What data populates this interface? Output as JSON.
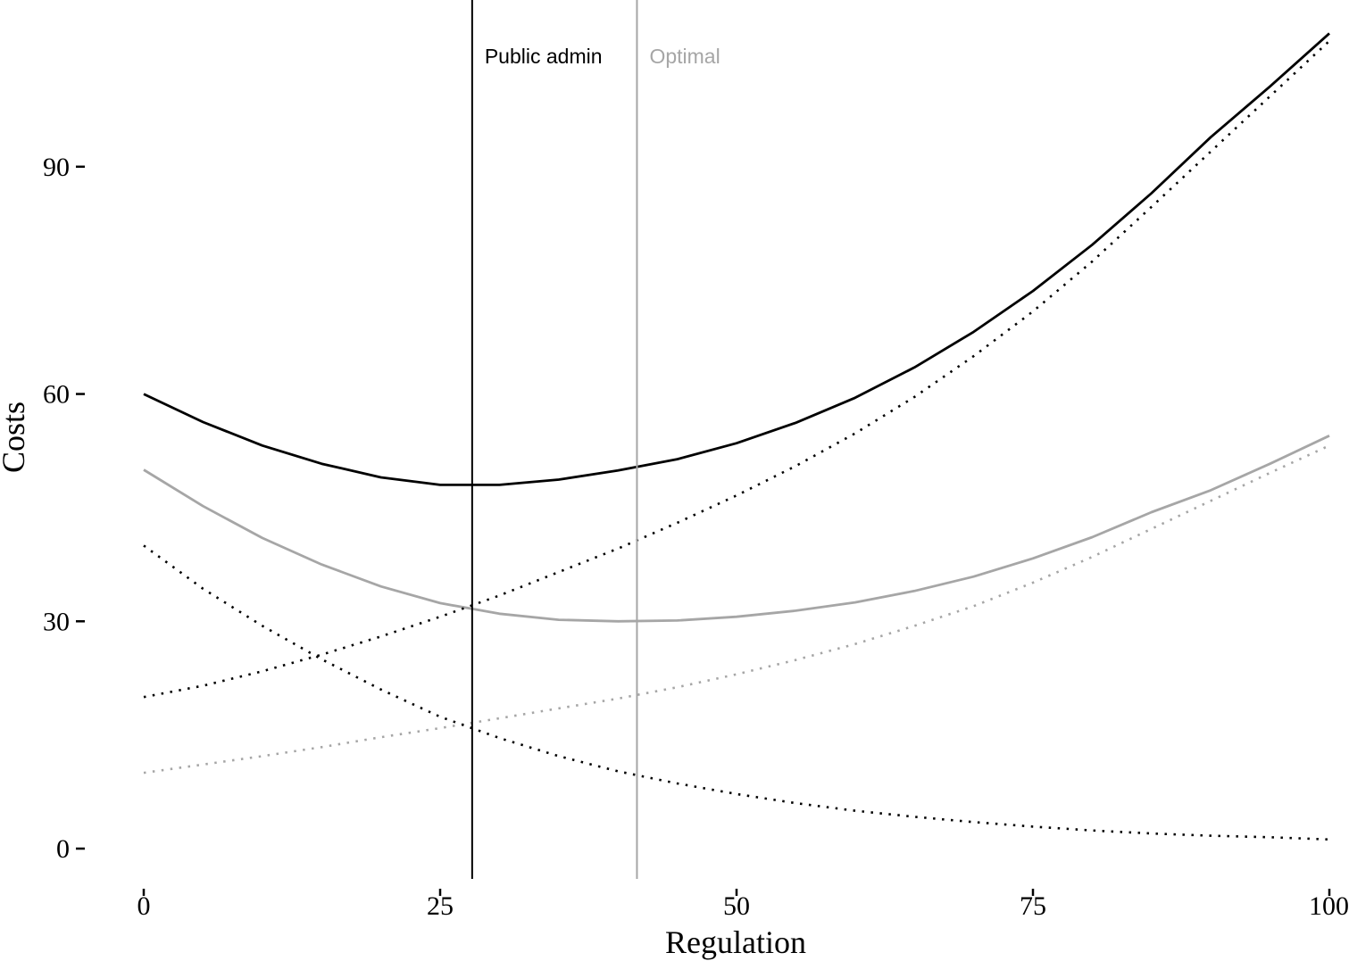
{
  "chart_data": {
    "type": "line",
    "title": "",
    "xlabel": "Regulation",
    "ylabel": "Costs",
    "xlim": [
      0,
      100
    ],
    "ylim": [
      -4,
      112
    ],
    "x_ticks": [
      0,
      25,
      50,
      75,
      100
    ],
    "y_ticks": [
      0,
      30,
      60,
      90
    ],
    "grid": false,
    "legend": "none",
    "colors": {
      "black": "#000000",
      "gray": "#a6a6a6"
    },
    "series": [
      {
        "color": "#000000",
        "style": "solid",
        "x": [
          0,
          5,
          10,
          15,
          20,
          25,
          30,
          35,
          40,
          45,
          50,
          55,
          60,
          65,
          70,
          75,
          80,
          85,
          90,
          95,
          100
        ],
        "y": [
          60.0,
          56.3,
          53.2,
          50.8,
          49.0,
          48.0,
          48.0,
          48.7,
          49.9,
          51.4,
          53.5,
          56.2,
          59.5,
          63.5,
          68.2,
          73.6,
          79.7,
          86.5,
          93.9,
          100.6,
          107.6
        ]
      },
      {
        "color": "#a6a6a6",
        "style": "solid",
        "x": [
          0,
          5,
          10,
          15,
          20,
          25,
          30,
          35,
          40,
          45,
          50,
          55,
          60,
          65,
          70,
          75,
          80,
          85,
          90,
          95,
          100
        ],
        "y": [
          50.0,
          45.2,
          41.0,
          37.5,
          34.6,
          32.4,
          31.0,
          30.2,
          30.0,
          30.1,
          30.6,
          31.4,
          32.5,
          34.0,
          35.9,
          38.3,
          41.1,
          44.4,
          47.3,
          50.8,
          54.5
        ]
      },
      {
        "color": "#000000",
        "style": "dotted",
        "x": [
          0,
          5,
          10,
          15,
          20,
          25,
          30,
          35,
          40,
          45,
          50,
          55,
          60,
          65,
          70,
          75,
          80,
          85,
          90,
          95,
          100
        ],
        "y": [
          20.0,
          21.5,
          23.4,
          25.6,
          28.0,
          30.6,
          33.4,
          36.5,
          39.6,
          43.0,
          46.6,
          50.5,
          54.8,
          59.6,
          65.0,
          70.9,
          77.5,
          84.7,
          92.0,
          99.3,
          106.6
        ]
      },
      {
        "color": "#a6a6a6",
        "style": "dotted",
        "x": [
          0,
          5,
          10,
          15,
          20,
          25,
          30,
          35,
          40,
          45,
          50,
          55,
          60,
          65,
          70,
          75,
          80,
          85,
          90,
          95,
          100
        ],
        "y": [
          10.0,
          11.1,
          12.2,
          13.4,
          14.7,
          15.9,
          17.2,
          18.5,
          19.8,
          21.3,
          23.0,
          24.9,
          27.0,
          29.4,
          32.0,
          35.1,
          38.5,
          42.2,
          45.9,
          49.6,
          53.2
        ]
      },
      {
        "color": "#000000",
        "style": "dotted",
        "x": [
          0,
          5,
          10,
          15,
          20,
          25,
          30,
          35,
          40,
          45,
          50,
          55,
          60,
          65,
          70,
          75,
          80,
          85,
          90,
          95,
          100
        ],
        "y": [
          40.0,
          34.3,
          29.4,
          25.0,
          21.0,
          17.4,
          14.6,
          12.2,
          10.2,
          8.6,
          7.2,
          6.0,
          5.0,
          4.2,
          3.5,
          2.9,
          2.4,
          2.0,
          1.7,
          1.5,
          1.2
        ]
      }
    ],
    "vlines": [
      {
        "x": 27.7,
        "label": "Public admin",
        "color": "#000000"
      },
      {
        "x": 41.6,
        "label": "Optimal",
        "color": "#a6a6a6"
      }
    ]
  }
}
